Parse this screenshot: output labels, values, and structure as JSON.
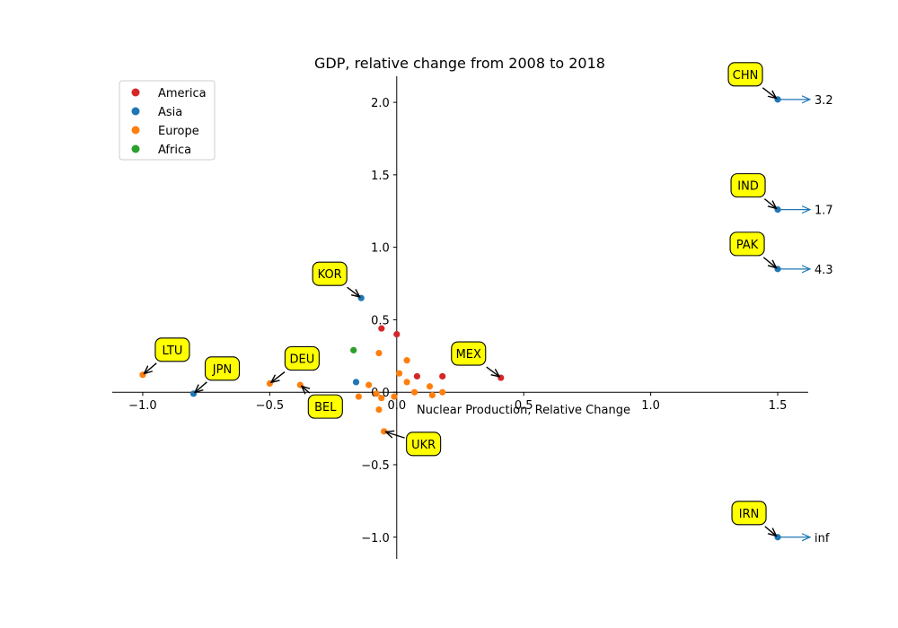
{
  "chart_data": {
    "type": "scatter",
    "title": "GDP, relative change from 2008 to 2018",
    "xlabel": "Nuclear Production, Relative Change",
    "ylabel": "",
    "xlim": [
      -1.12,
      1.62
    ],
    "ylim": [
      -1.15,
      2.18
    ],
    "spines": "centered at origin",
    "grid": false,
    "legend_position": "top-left",
    "x_ticks": [
      {
        "value": -1.0,
        "label": "−1.0"
      },
      {
        "value": -0.5,
        "label": "−0.5"
      },
      {
        "value": 0.0,
        "label": "0.0"
      },
      {
        "value": 0.5,
        "label": "0.5"
      },
      {
        "value": 1.0,
        "label": "1.0"
      },
      {
        "value": 1.5,
        "label": "1.5"
      }
    ],
    "y_ticks": [
      {
        "value": -1.0,
        "label": "−1.0"
      },
      {
        "value": -0.5,
        "label": "−0.5"
      },
      {
        "value": 0.0,
        "label": "0.0"
      },
      {
        "value": 0.5,
        "label": "0.5"
      },
      {
        "value": 1.0,
        "label": "1.0"
      },
      {
        "value": 1.5,
        "label": "1.5"
      },
      {
        "value": 2.0,
        "label": "2.0"
      }
    ],
    "series": [
      {
        "name": "America",
        "color": "#d62728"
      },
      {
        "name": "Asia",
        "color": "#1f77b4"
      },
      {
        "name": "Europe",
        "color": "#ff7f0e"
      },
      {
        "name": "Africa",
        "color": "#2ca02c"
      }
    ],
    "points": [
      {
        "x": -1.0,
        "y": 0.12,
        "series": "Europe"
      },
      {
        "x": -0.8,
        "y": -0.01,
        "series": "Asia"
      },
      {
        "x": -0.5,
        "y": 0.06,
        "series": "Europe"
      },
      {
        "x": -0.38,
        "y": 0.05,
        "series": "Europe"
      },
      {
        "x": -0.14,
        "y": 0.65,
        "series": "Asia"
      },
      {
        "x": -0.17,
        "y": 0.29,
        "series": "Africa"
      },
      {
        "x": -0.06,
        "y": 0.44,
        "series": "America"
      },
      {
        "x": 0.0,
        "y": 0.4,
        "series": "America"
      },
      {
        "x": -0.07,
        "y": 0.27,
        "series": "Europe"
      },
      {
        "x": -0.16,
        "y": 0.07,
        "series": "Asia"
      },
      {
        "x": -0.11,
        "y": 0.05,
        "series": "Europe"
      },
      {
        "x": -0.15,
        "y": -0.03,
        "series": "Europe"
      },
      {
        "x": -0.08,
        "y": -0.01,
        "series": "Europe"
      },
      {
        "x": -0.06,
        "y": -0.04,
        "series": "Europe"
      },
      {
        "x": -0.01,
        "y": -0.03,
        "series": "Europe"
      },
      {
        "x": -0.07,
        "y": -0.12,
        "series": "Europe"
      },
      {
        "x": -0.05,
        "y": -0.27,
        "series": "Europe"
      },
      {
        "x": 0.01,
        "y": 0.13,
        "series": "Europe"
      },
      {
        "x": 0.04,
        "y": 0.22,
        "series": "Europe"
      },
      {
        "x": 0.04,
        "y": 0.07,
        "series": "Europe"
      },
      {
        "x": 0.07,
        "y": 0.0,
        "series": "Europe"
      },
      {
        "x": 0.08,
        "y": 0.11,
        "series": "America"
      },
      {
        "x": 0.13,
        "y": 0.04,
        "series": "Europe"
      },
      {
        "x": 0.14,
        "y": -0.02,
        "series": "Europe"
      },
      {
        "x": 0.18,
        "y": 0.11,
        "series": "America"
      },
      {
        "x": 0.18,
        "y": 0.0,
        "series": "Europe"
      },
      {
        "x": 0.41,
        "y": 0.1,
        "series": "America"
      },
      {
        "x": 1.5,
        "y": 2.02,
        "series": "Asia"
      },
      {
        "x": 1.5,
        "y": 1.26,
        "series": "Asia"
      },
      {
        "x": 1.5,
        "y": 0.85,
        "series": "Asia"
      },
      {
        "x": 1.5,
        "y": -1.0,
        "series": "Asia"
      }
    ],
    "annotations": [
      {
        "label": "LTU",
        "x": -1.0,
        "y": 0.12
      },
      {
        "label": "JPN",
        "x": -0.8,
        "y": -0.01
      },
      {
        "label": "DEU",
        "x": -0.5,
        "y": 0.06
      },
      {
        "label": "BEL",
        "x": -0.38,
        "y": 0.05
      },
      {
        "label": "KOR",
        "x": -0.14,
        "y": 0.65
      },
      {
        "label": "MEX",
        "x": 0.41,
        "y": 0.1
      },
      {
        "label": "UKR",
        "x": -0.05,
        "y": -0.27
      },
      {
        "label": "CHN",
        "x": 1.5,
        "y": 2.02
      },
      {
        "label": "IND",
        "x": 1.5,
        "y": 1.26
      },
      {
        "label": "PAK",
        "x": 1.5,
        "y": 0.85
      },
      {
        "label": "IRN",
        "x": 1.5,
        "y": -1.0
      }
    ],
    "annotation_box_color": "#ffff00",
    "overflow_markers": [
      {
        "y": 2.02,
        "label": "3.2"
      },
      {
        "y": 1.26,
        "label": "1.7"
      },
      {
        "y": 0.85,
        "label": "4.3"
      },
      {
        "y": -1.0,
        "label": "inf"
      }
    ],
    "overflow_arrow_color": "#1f77b4"
  }
}
